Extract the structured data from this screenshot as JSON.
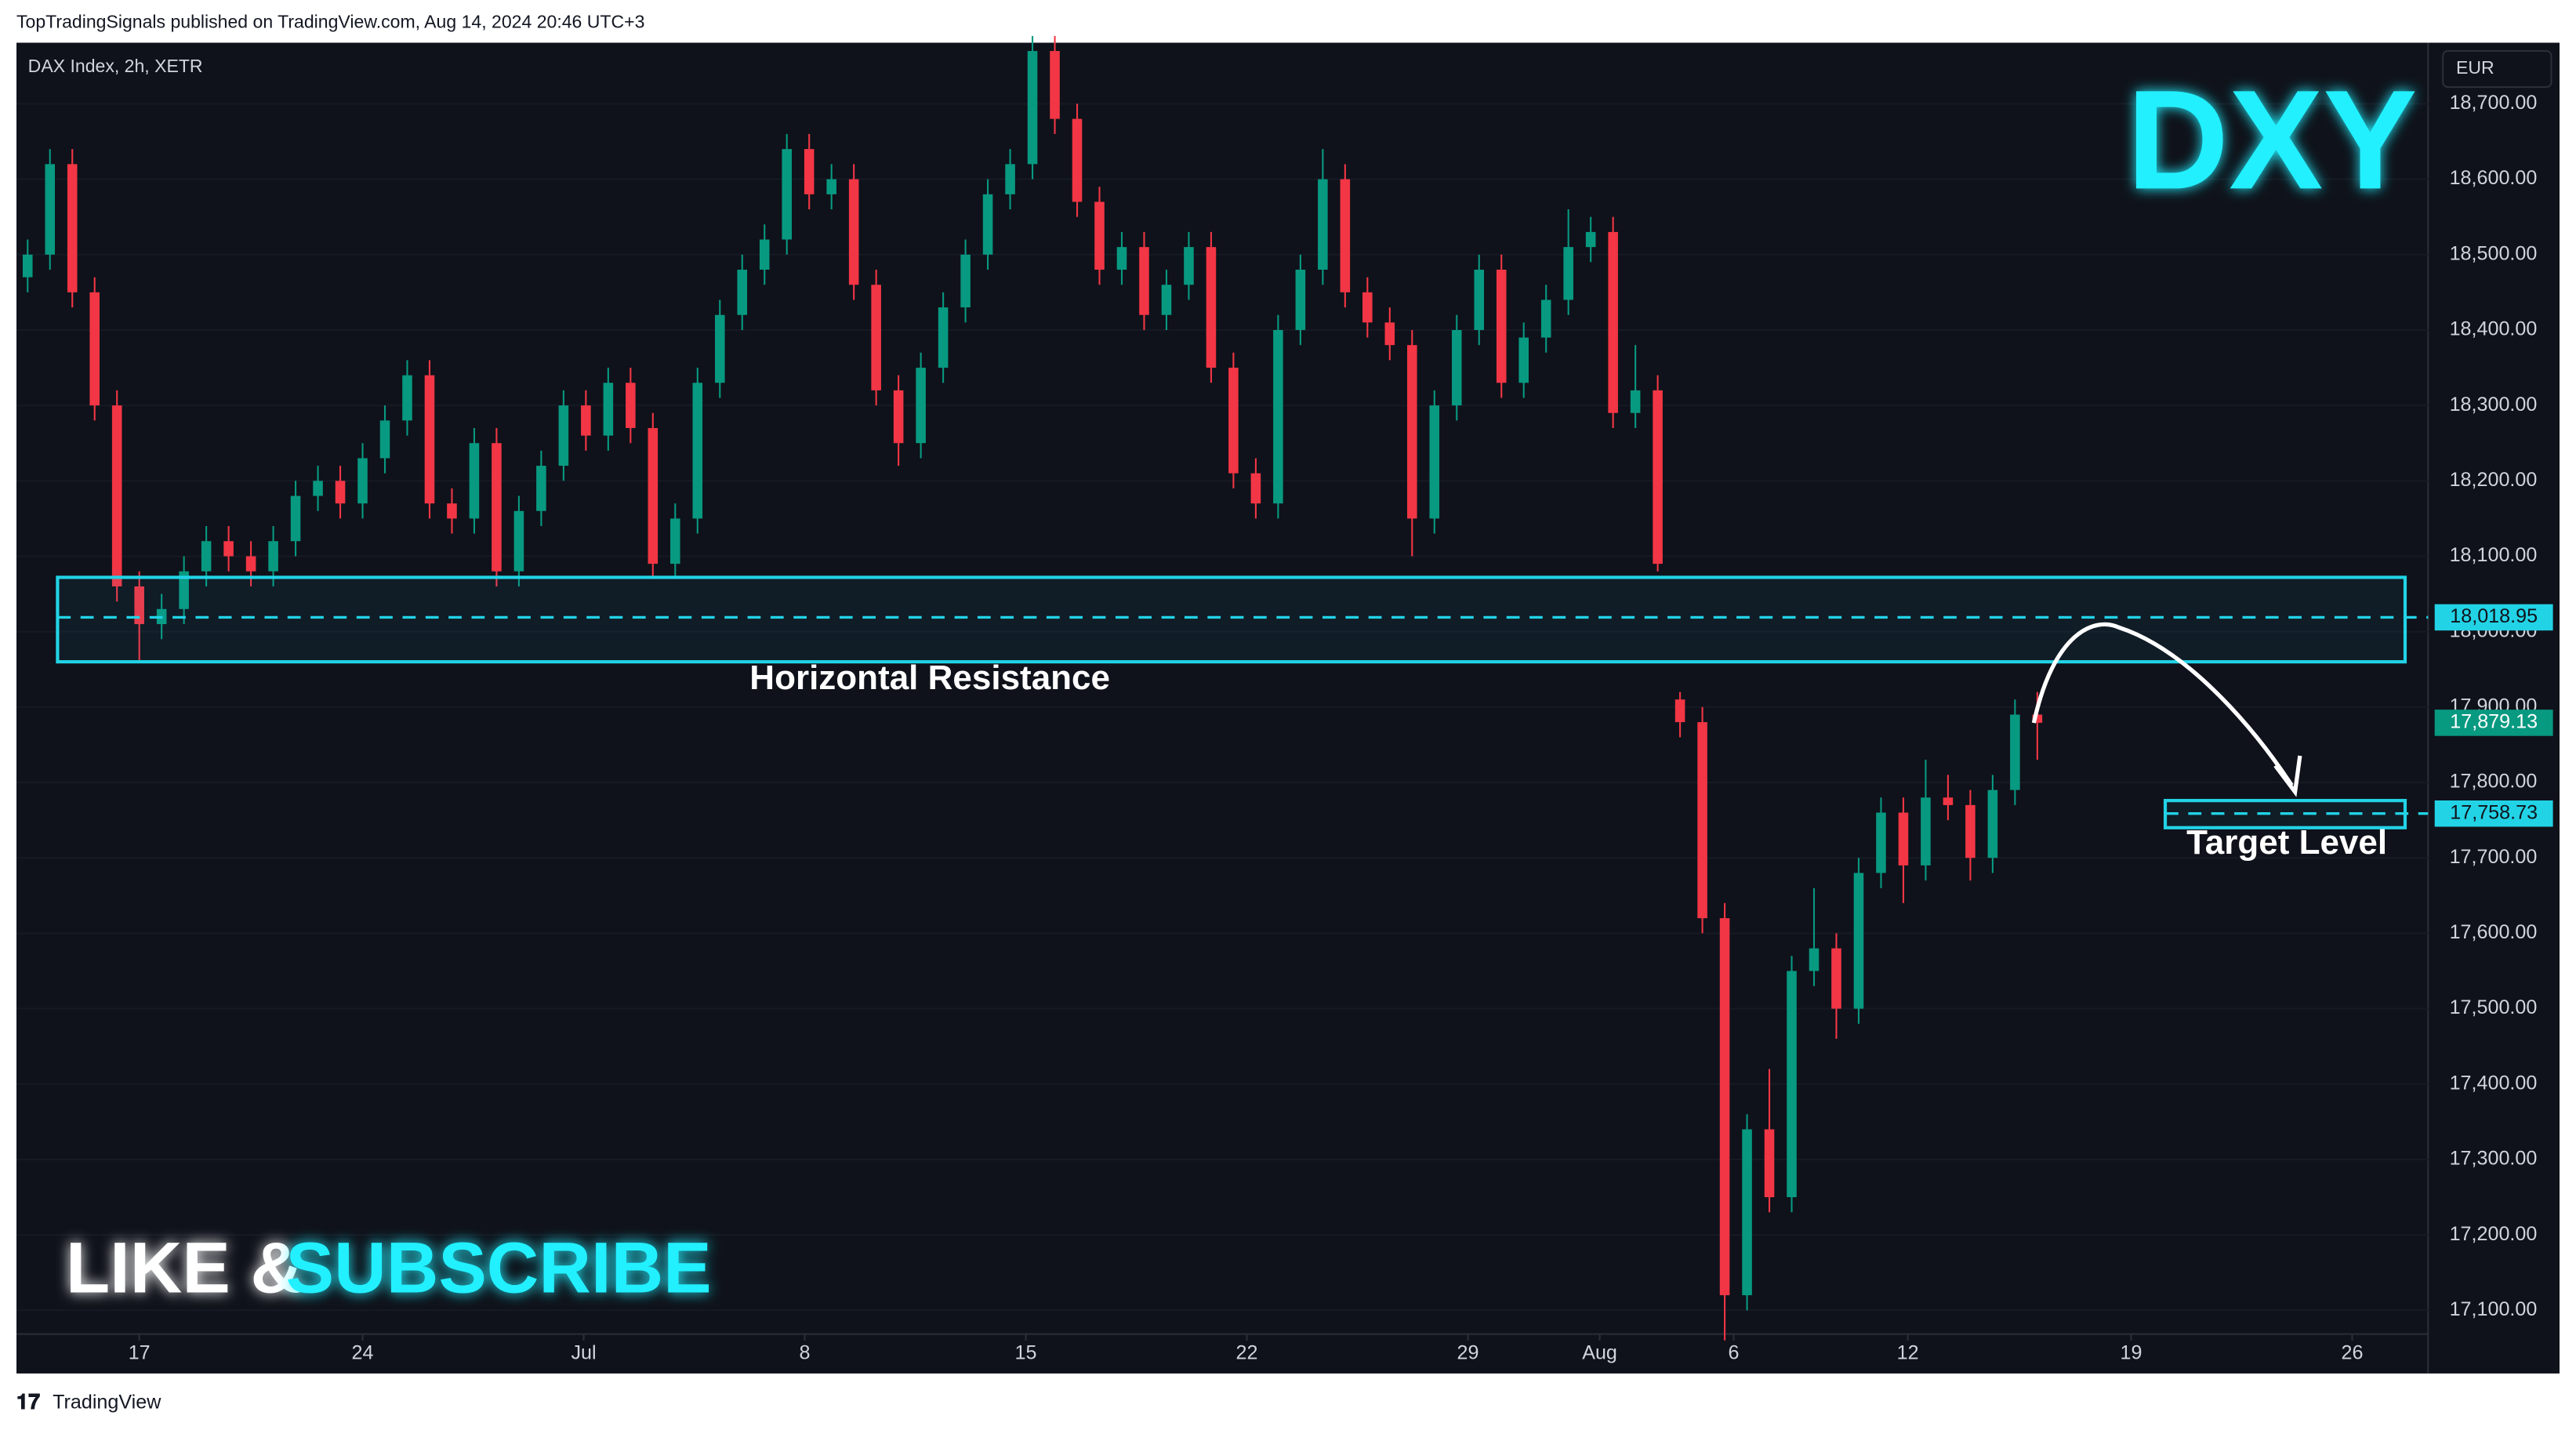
{
  "header": {
    "publisher": "TopTradingSignals published on TradingView.com, Aug 14, 2024 20:46 UTC+3"
  },
  "footer": {
    "brand": "TradingView"
  },
  "chart_data": {
    "type": "candlestick",
    "symbol": "DAX Index, 2h, XETR",
    "currency": "EUR",
    "overlay_title": "DXY",
    "cta": {
      "like": "LIKE &",
      "subscribe": "SUBSCRIBE"
    },
    "colors": {
      "up": "#089981",
      "down": "#f23645",
      "zone": "#22d3e6",
      "background": "#0f121a"
    },
    "xlim": [
      0,
      108
    ],
    "xticks": [
      {
        "value": 5.5,
        "label": "17"
      },
      {
        "value": 15.5,
        "label": "24"
      },
      {
        "value": 25.4,
        "label": "Jul"
      },
      {
        "value": 35.3,
        "label": "8"
      },
      {
        "value": 45.2,
        "label": "15"
      },
      {
        "value": 55.1,
        "label": "22"
      },
      {
        "value": 65,
        "label": "29"
      },
      {
        "value": 70.9,
        "label": "Aug"
      },
      {
        "value": 76.9,
        "label": "6"
      },
      {
        "value": 84.7,
        "label": "12"
      },
      {
        "value": 94.7,
        "label": "19"
      },
      {
        "value": 104.6,
        "label": "26"
      }
    ],
    "ylim": [
      17068.5,
      18781
    ],
    "yticks": [
      {
        "value": 17100,
        "label": "17,100.00"
      },
      {
        "value": 17200,
        "label": "17,200.00"
      },
      {
        "value": 17300,
        "label": "17,300.00"
      },
      {
        "value": 17400,
        "label": "17,400.00"
      },
      {
        "value": 17500,
        "label": "17,500.00"
      },
      {
        "value": 17600,
        "label": "17,600.00"
      },
      {
        "value": 17700,
        "label": "17,700.00"
      },
      {
        "value": 17800,
        "label": "17,800.00"
      },
      {
        "value": 17900,
        "label": "17,900.00"
      },
      {
        "value": 18000,
        "label": "18,000.00"
      },
      {
        "value": 18100,
        "label": "18,100.00"
      },
      {
        "value": 18200,
        "label": "18,200.00"
      },
      {
        "value": 18300,
        "label": "18,300.00"
      },
      {
        "value": 18400,
        "label": "18,400.00"
      },
      {
        "value": 18500,
        "label": "18,500.00"
      },
      {
        "value": 18600,
        "label": "18,600.00"
      },
      {
        "value": 18700,
        "label": "18,700.00"
      }
    ],
    "candles": [
      [
        18470,
        18520,
        18450,
        18500
      ],
      [
        18500,
        18640,
        18480,
        18620
      ],
      [
        18620,
        18640,
        18430,
        18450
      ],
      [
        18450,
        18470,
        18280,
        18300
      ],
      [
        18300,
        18320,
        18040,
        18060
      ],
      [
        18060,
        18080,
        17960,
        18010
      ],
      [
        18010,
        18050,
        17990,
        18030
      ],
      [
        18030,
        18100,
        18010,
        18080
      ],
      [
        18080,
        18140,
        18060,
        18120
      ],
      [
        18120,
        18140,
        18080,
        18100
      ],
      [
        18100,
        18120,
        18060,
        18080
      ],
      [
        18080,
        18140,
        18060,
        18120
      ],
      [
        18120,
        18200,
        18100,
        18180
      ],
      [
        18180,
        18220,
        18160,
        18200
      ],
      [
        18200,
        18220,
        18150,
        18170
      ],
      [
        18170,
        18250,
        18150,
        18230
      ],
      [
        18230,
        18300,
        18210,
        18280
      ],
      [
        18280,
        18360,
        18260,
        18340
      ],
      [
        18340,
        18360,
        18150,
        18170
      ],
      [
        18170,
        18190,
        18130,
        18150
      ],
      [
        18150,
        18270,
        18130,
        18250
      ],
      [
        18250,
        18270,
        18060,
        18080
      ],
      [
        18080,
        18180,
        18060,
        18160
      ],
      [
        18160,
        18240,
        18140,
        18220
      ],
      [
        18220,
        18320,
        18200,
        18300
      ],
      [
        18300,
        18320,
        18240,
        18260
      ],
      [
        18260,
        18350,
        18240,
        18330
      ],
      [
        18330,
        18350,
        18250,
        18270
      ],
      [
        18270,
        18290,
        18070,
        18090
      ],
      [
        18090,
        18170,
        18070,
        18150
      ],
      [
        18150,
        18350,
        18130,
        18330
      ],
      [
        18330,
        18440,
        18310,
        18420
      ],
      [
        18420,
        18500,
        18400,
        18480
      ],
      [
        18480,
        18540,
        18460,
        18520
      ],
      [
        18520,
        18660,
        18500,
        18640
      ],
      [
        18640,
        18660,
        18560,
        18580
      ],
      [
        18580,
        18620,
        18560,
        18600
      ],
      [
        18600,
        18620,
        18440,
        18460
      ],
      [
        18460,
        18480,
        18300,
        18320
      ],
      [
        18320,
        18340,
        18220,
        18250
      ],
      [
        18250,
        18370,
        18230,
        18350
      ],
      [
        18350,
        18450,
        18330,
        18430
      ],
      [
        18430,
        18520,
        18410,
        18500
      ],
      [
        18500,
        18600,
        18480,
        18580
      ],
      [
        18580,
        18640,
        18560,
        18620
      ],
      [
        18620,
        18790,
        18600,
        18770
      ],
      [
        18770,
        18790,
        18660,
        18680
      ],
      [
        18680,
        18700,
        18550,
        18570
      ],
      [
        18570,
        18590,
        18460,
        18480
      ],
      [
        18480,
        18530,
        18460,
        18510
      ],
      [
        18510,
        18530,
        18400,
        18420
      ],
      [
        18420,
        18480,
        18400,
        18460
      ],
      [
        18460,
        18530,
        18440,
        18510
      ],
      [
        18510,
        18530,
        18330,
        18350
      ],
      [
        18350,
        18370,
        18190,
        18210
      ],
      [
        18210,
        18230,
        18150,
        18170
      ],
      [
        18170,
        18420,
        18150,
        18400
      ],
      [
        18400,
        18500,
        18380,
        18480
      ],
      [
        18480,
        18640,
        18460,
        18600
      ],
      [
        18600,
        18620,
        18430,
        18450
      ],
      [
        18450,
        18470,
        18390,
        18410
      ],
      [
        18410,
        18430,
        18360,
        18380
      ],
      [
        18380,
        18400,
        18100,
        18150
      ],
      [
        18150,
        18320,
        18130,
        18300
      ],
      [
        18300,
        18420,
        18280,
        18400
      ],
      [
        18400,
        18500,
        18380,
        18480
      ],
      [
        18480,
        18500,
        18310,
        18330
      ],
      [
        18330,
        18410,
        18310,
        18390
      ],
      [
        18390,
        18460,
        18370,
        18440
      ],
      [
        18440,
        18560,
        18420,
        18510
      ],
      [
        18510,
        18550,
        18490,
        18530
      ],
      [
        18530,
        18550,
        18270,
        18290
      ],
      [
        18290,
        18380,
        18270,
        18320
      ],
      [
        18320,
        18340,
        18080,
        18090
      ],
      [
        17910,
        17920,
        17860,
        17880
      ],
      [
        17880,
        17900,
        17600,
        17620
      ],
      [
        17620,
        17640,
        17060,
        17120
      ],
      [
        17120,
        17360,
        17100,
        17340
      ],
      [
        17340,
        17420,
        17230,
        17250
      ],
      [
        17250,
        17570,
        17230,
        17550
      ],
      [
        17550,
        17660,
        17530,
        17580
      ],
      [
        17580,
        17600,
        17460,
        17500
      ],
      [
        17500,
        17700,
        17480,
        17680
      ],
      [
        17680,
        17780,
        17660,
        17760
      ],
      [
        17760,
        17780,
        17640,
        17690
      ],
      [
        17690,
        17830,
        17670,
        17780
      ],
      [
        17780,
        17810,
        17750,
        17770
      ],
      [
        17770,
        17790,
        17670,
        17700
      ],
      [
        17700,
        17810,
        17680,
        17790
      ],
      [
        17790,
        17910,
        17770,
        17890
      ],
      [
        17890,
        17920,
        17830,
        17879.13
      ]
    ],
    "last_price_label": "17,879.13",
    "zones": [
      {
        "label": "Horizontal Resistance",
        "top": 18072,
        "bottom": 17960,
        "level": 18018.95,
        "level_label": "18,018.95"
      },
      {
        "label": "Target Level",
        "top": 17776,
        "bottom": 17740,
        "level": 17758.73,
        "level_label": "17,758.73"
      }
    ]
  }
}
